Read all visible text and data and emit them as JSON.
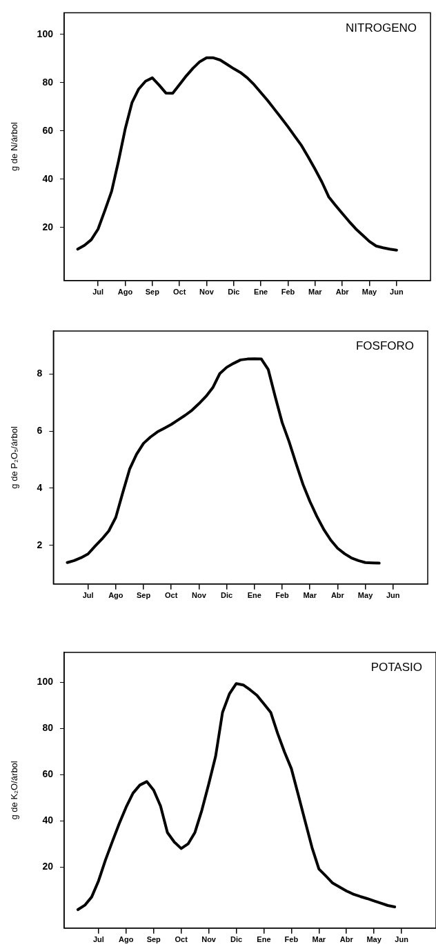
{
  "chart_data": [
    {
      "type": "line",
      "title": "NITROGENO",
      "ylabel": "g de N/árbol",
      "categories": [
        null,
        null,
        null,
        "Jul",
        null,
        null,
        null,
        "Ago",
        null,
        null,
        null,
        "Sep",
        null,
        null,
        null,
        "Oct",
        null,
        null,
        null,
        "Nov",
        null,
        null,
        null,
        "Dic",
        null,
        null,
        null,
        "Ene",
        null,
        null,
        null,
        "Feb",
        null,
        null,
        null,
        "Mar",
        null,
        null,
        null,
        "Abr",
        null,
        null,
        null,
        "May",
        null,
        null,
        null,
        "Jun"
      ],
      "ylim": [
        -2,
        109
      ],
      "yticks": [
        20,
        40,
        60,
        80,
        100
      ],
      "grid": false,
      "legend": false,
      "marker": "none",
      "line_style": "solid",
      "series": [
        {
          "color": "#000000",
          "values": [
            11,
            12.6,
            14.9,
            19.3,
            27,
            35,
            47.3,
            60.8,
            71.7,
            77.4,
            80.6,
            82,
            79,
            75.7,
            75.6,
            79.2,
            82.8,
            86,
            88.7,
            90.3,
            90.3,
            89.4,
            87.6,
            85.8,
            84.2,
            82,
            79.2,
            75.9,
            72.6,
            69,
            65.4,
            61.7,
            57.8,
            53.9,
            49.1,
            44.1,
            38.8,
            32.7,
            29.2,
            25.8,
            22.5,
            19.4,
            16.8,
            14.2,
            12.3,
            11.6,
            11,
            10.6
          ]
        }
      ]
    },
    {
      "type": "line",
      "title": "FOSFORO",
      "ylabel": "g de P₂O₅/árbol",
      "categories": [
        null,
        null,
        null,
        "Jul",
        null,
        null,
        null,
        "Ago",
        null,
        null,
        null,
        "Sep",
        null,
        null,
        null,
        "Oct",
        null,
        null,
        null,
        "Nov",
        null,
        null,
        null,
        "Dic",
        null,
        null,
        null,
        "Ene",
        null,
        null,
        null,
        "Feb",
        null,
        null,
        null,
        "Mar",
        null,
        null,
        null,
        "Abr",
        null,
        null,
        null,
        "May",
        null,
        null,
        null,
        "Jun"
      ],
      "ylim": [
        0.65,
        9.5
      ],
      "yticks": [
        2,
        4,
        6,
        8
      ],
      "grid": false,
      "legend": false,
      "marker": "none",
      "line_style": "solid",
      "series": [
        {
          "color": "#000000",
          "values": [
            1.4,
            1.47,
            1.57,
            1.7,
            1.97,
            2.22,
            2.51,
            2.98,
            3.84,
            4.67,
            5.19,
            5.57,
            5.79,
            5.97,
            6.1,
            6.23,
            6.39,
            6.55,
            6.73,
            6.96,
            7.21,
            7.52,
            8.01,
            8.23,
            8.37,
            8.49,
            8.52,
            8.53,
            8.52,
            8.15,
            7.2,
            6.3,
            5.63,
            4.87,
            4.14,
            3.54,
            3.02,
            2.56,
            2.19,
            1.9,
            1.71,
            1.56,
            1.47,
            1.4,
            1.39,
            1.38,
            null,
            null
          ]
        }
      ]
    },
    {
      "type": "line",
      "title": "POTASIO",
      "ylabel": "g de K₂O/árbol",
      "categories": [
        null,
        null,
        null,
        "Jul",
        null,
        null,
        null,
        "Ago",
        null,
        null,
        null,
        "Sep",
        null,
        null,
        null,
        "Oct",
        null,
        null,
        null,
        "Nov",
        null,
        null,
        null,
        "Dic",
        null,
        null,
        null,
        "Ene",
        null,
        null,
        null,
        "Feb",
        null,
        null,
        null,
        "Mar",
        null,
        null,
        null,
        "Abr",
        null,
        null,
        null,
        "May",
        null,
        null,
        null,
        "Jun"
      ],
      "ylim": [
        -6.5,
        113
      ],
      "yticks": [
        20,
        40,
        60,
        80,
        100
      ],
      "grid": false,
      "legend": false,
      "marker": "none",
      "line_style": "solid",
      "series": [
        {
          "color": "#000000",
          "values": [
            1.5,
            3.4,
            7,
            14,
            23,
            31,
            38.8,
            45.9,
            52,
            55.5,
            57,
            53.3,
            46.4,
            34.9,
            30.8,
            28,
            30,
            35,
            44.6,
            56,
            68,
            87,
            95,
            99.5,
            98.9,
            96.8,
            94.4,
            90.7,
            87,
            77.9,
            69.8,
            62.6,
            51.3,
            39.8,
            28.4,
            19.1,
            16.1,
            13,
            11.3,
            9.6,
            8.2,
            7.2,
            6.3,
            5.3,
            4.3,
            3.3,
            2.7,
            null
          ]
        }
      ]
    }
  ]
}
